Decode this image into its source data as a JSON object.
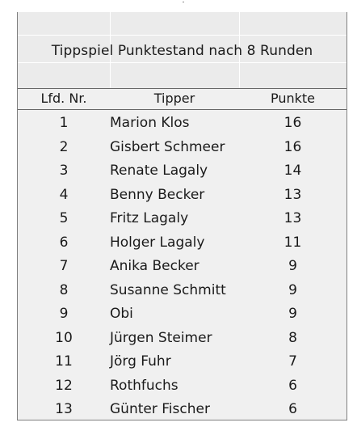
{
  "table": {
    "title": "Tippspiel Punktestand nach 8 Runden",
    "headers": {
      "nr": "Lfd. Nr.",
      "tipper": "Tipper",
      "punkte": "Punkte"
    },
    "rows": [
      {
        "nr": "1",
        "name": "Marion Klos",
        "punkte": "16"
      },
      {
        "nr": "2",
        "name": "Gisbert Schmeer",
        "punkte": "16"
      },
      {
        "nr": "3",
        "name": "Renate Lagaly",
        "punkte": "14"
      },
      {
        "nr": "4",
        "name": "Benny Becker",
        "punkte": "13"
      },
      {
        "nr": "5",
        "name": "Fritz Lagaly",
        "punkte": "13"
      },
      {
        "nr": "6",
        "name": "Holger Lagaly",
        "punkte": "11"
      },
      {
        "nr": "7",
        "name": "Anika Becker",
        "punkte": "9"
      },
      {
        "nr": "8",
        "name": "Susanne Schmitt",
        "punkte": "9"
      },
      {
        "nr": "9",
        "name": "Obi",
        "punkte": "9"
      },
      {
        "nr": "10",
        "name": "Jürgen Steimer",
        "punkte": "8"
      },
      {
        "nr": "11",
        "name": "Jörg Fuhr",
        "punkte": "7"
      },
      {
        "nr": "12",
        "name": "Rothfuchs",
        "punkte": "6"
      },
      {
        "nr": "13",
        "name": "Günter Fischer",
        "punkte": "6"
      }
    ]
  }
}
